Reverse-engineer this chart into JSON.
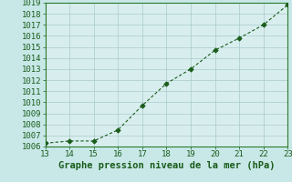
{
  "x": [
    13,
    14,
    15,
    16,
    17,
    18,
    19,
    20,
    21,
    22,
    23
  ],
  "y": [
    1006.3,
    1006.5,
    1006.5,
    1007.5,
    1009.7,
    1011.7,
    1013.0,
    1014.7,
    1015.8,
    1017.0,
    1018.8
  ],
  "xlim": [
    13,
    23
  ],
  "ylim": [
    1006,
    1019
  ],
  "xticks": [
    13,
    14,
    15,
    16,
    17,
    18,
    19,
    20,
    21,
    22,
    23
  ],
  "yticks": [
    1006,
    1007,
    1008,
    1009,
    1010,
    1011,
    1012,
    1013,
    1014,
    1015,
    1016,
    1017,
    1018,
    1019
  ],
  "line_color": "#1a5c1a",
  "marker_color": "#1a5c1a",
  "bg_plot": "#d8eeee",
  "bg_fig": "#c8e8e8",
  "grid_color": "#aacaca",
  "xlabel": "Graphe pression niveau de la mer (hPa)",
  "xlabel_color": "#1a5c1a",
  "tick_color": "#1a5c1a",
  "tick_fontsize": 6.5,
  "xlabel_fontsize": 7.5,
  "border_color": "#2a7a2a"
}
